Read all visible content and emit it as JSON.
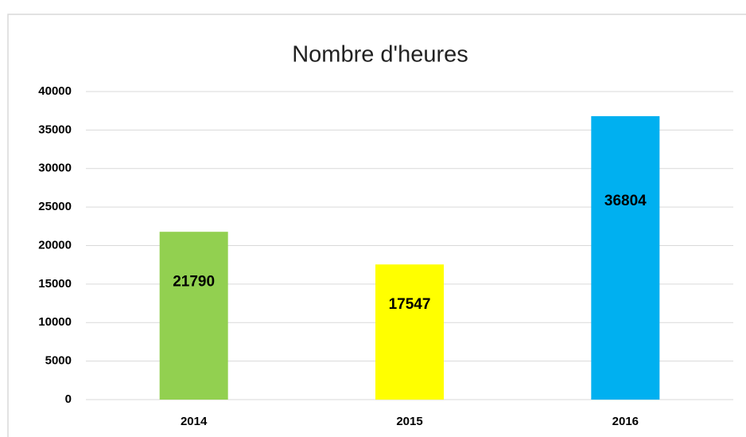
{
  "chart_data": {
    "type": "bar",
    "title": "Nombre d'heures",
    "categories": [
      "2014",
      "2015",
      "2016"
    ],
    "values": [
      21790,
      17547,
      36804
    ],
    "colors": [
      "#92d050",
      "#ffff00",
      "#00b0f0"
    ],
    "ylim": [
      0,
      40000
    ],
    "yticks": [
      0,
      5000,
      10000,
      15000,
      20000,
      25000,
      30000,
      35000,
      40000
    ],
    "grid": true
  }
}
